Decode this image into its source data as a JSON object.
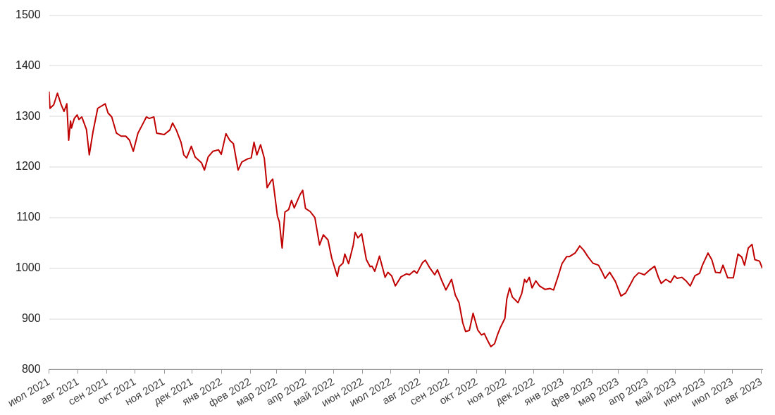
{
  "chart_data": {
    "type": "line",
    "xlim": [
      "2021-07-01",
      "2023-08-02"
    ],
    "ylim": [
      800,
      1500
    ],
    "yticks": [
      800,
      900,
      1000,
      1100,
      1200,
      1300,
      1400,
      1500
    ],
    "xticks": [
      {
        "value": "2021-07-01",
        "label": "июл 2021"
      },
      {
        "value": "2021-08-01",
        "label": "авг 2021"
      },
      {
        "value": "2021-09-01",
        "label": "сен 2021"
      },
      {
        "value": "2021-10-01",
        "label": "окт 2021"
      },
      {
        "value": "2021-11-01",
        "label": "ноя 2021"
      },
      {
        "value": "2021-12-01",
        "label": "дек 2021"
      },
      {
        "value": "2022-01-01",
        "label": "янв 2022"
      },
      {
        "value": "2022-02-01",
        "label": "фев 2022"
      },
      {
        "value": "2022-03-01",
        "label": "мар 2022"
      },
      {
        "value": "2022-04-01",
        "label": "апр 2022"
      },
      {
        "value": "2022-05-01",
        "label": "май 2022"
      },
      {
        "value": "2022-06-01",
        "label": "июн 2022"
      },
      {
        "value": "2022-07-01",
        "label": "июл 2022"
      },
      {
        "value": "2022-08-01",
        "label": "авг 2022"
      },
      {
        "value": "2022-09-01",
        "label": "сен 2022"
      },
      {
        "value": "2022-10-01",
        "label": "окт 2022"
      },
      {
        "value": "2022-11-01",
        "label": "ноя 2022"
      },
      {
        "value": "2022-12-01",
        "label": "дек 2022"
      },
      {
        "value": "2023-01-01",
        "label": "янв 2023"
      },
      {
        "value": "2023-02-01",
        "label": "фев 2023"
      },
      {
        "value": "2023-03-01",
        "label": "мар 2023"
      },
      {
        "value": "2023-04-01",
        "label": "апр 2023"
      },
      {
        "value": "2023-05-01",
        "label": "май 2023"
      },
      {
        "value": "2023-06-01",
        "label": "июн 2023"
      },
      {
        "value": "2023-07-01",
        "label": "июл 2023"
      },
      {
        "value": "2023-08-01",
        "label": "авг 2023"
      }
    ],
    "grid": "y",
    "legend": false,
    "marker": "none",
    "line_style": "solid",
    "x": [
      "2021-07-01",
      "2021-07-02",
      "2021-07-06",
      "2021-07-10",
      "2021-07-14",
      "2021-07-17",
      "2021-07-20",
      "2021-07-22",
      "2021-07-24",
      "2021-07-25",
      "2021-07-28",
      "2021-07-31",
      "2021-08-02",
      "2021-08-05",
      "2021-08-10",
      "2021-08-13",
      "2021-08-17",
      "2021-08-22",
      "2021-08-30",
      "2021-09-02",
      "2021-09-06",
      "2021-09-11",
      "2021-09-16",
      "2021-09-21",
      "2021-09-25",
      "2021-09-29",
      "2021-10-04",
      "2021-10-08",
      "2021-10-13",
      "2021-10-16",
      "2021-10-21",
      "2021-10-24",
      "2021-11-01",
      "2021-11-07",
      "2021-11-10",
      "2021-11-14",
      "2021-11-19",
      "2021-11-22",
      "2021-11-25",
      "2021-11-30",
      "2021-12-04",
      "2021-12-11",
      "2021-12-14",
      "2021-12-18",
      "2021-12-23",
      "2021-12-29",
      "2022-01-01",
      "2022-01-06",
      "2022-01-10",
      "2022-01-14",
      "2022-01-19",
      "2022-01-23",
      "2022-01-29",
      "2022-02-02",
      "2022-02-05",
      "2022-02-08",
      "2022-02-12",
      "2022-02-16",
      "2022-02-19",
      "2022-02-23",
      "2022-02-25",
      "2022-03-02",
      "2022-03-04",
      "2022-03-07",
      "2022-03-10",
      "2022-03-14",
      "2022-03-17",
      "2022-03-20",
      "2022-03-26",
      "2022-03-29",
      "2022-04-01",
      "2022-04-06",
      "2022-04-11",
      "2022-04-16",
      "2022-04-20",
      "2022-04-25",
      "2022-04-29",
      "2022-05-05",
      "2022-05-07",
      "2022-05-11",
      "2022-05-13",
      "2022-05-17",
      "2022-05-22",
      "2022-05-24",
      "2022-05-27",
      "2022-05-31",
      "2022-06-05",
      "2022-06-09",
      "2022-06-11",
      "2022-06-14",
      "2022-06-19",
      "2022-06-25",
      "2022-06-28",
      "2022-07-02",
      "2022-07-06",
      "2022-07-12",
      "2022-07-18",
      "2022-07-21",
      "2022-07-26",
      "2022-07-29",
      "2022-08-04",
      "2022-08-07",
      "2022-08-12",
      "2022-08-17",
      "2022-08-20",
      "2022-08-24",
      "2022-08-29",
      "2022-09-04",
      "2022-09-08",
      "2022-09-12",
      "2022-09-16",
      "2022-09-19",
      "2022-09-23",
      "2022-09-27",
      "2022-10-02",
      "2022-10-06",
      "2022-10-09",
      "2022-10-12",
      "2022-10-16",
      "2022-10-20",
      "2022-10-23",
      "2022-10-26",
      "2022-10-31",
      "2022-11-02",
      "2022-11-05",
      "2022-11-08",
      "2022-11-14",
      "2022-11-18",
      "2022-11-21",
      "2022-11-23",
      "2022-11-26",
      "2022-11-29",
      "2022-12-03",
      "2022-12-07",
      "2022-12-13",
      "2022-12-18",
      "2022-12-22",
      "2022-12-27",
      "2022-12-31",
      "2023-01-05",
      "2023-01-08",
      "2023-01-14",
      "2023-01-19",
      "2023-01-23",
      "2023-01-28",
      "2023-02-02",
      "2023-02-08",
      "2023-02-12",
      "2023-02-15",
      "2023-02-20",
      "2023-02-26",
      "2023-03-04",
      "2023-03-09",
      "2023-03-14",
      "2023-03-18",
      "2023-03-23",
      "2023-03-29",
      "2023-04-04",
      "2023-04-09",
      "2023-04-13",
      "2023-04-16",
      "2023-04-21",
      "2023-04-26",
      "2023-04-30",
      "2023-05-03",
      "2023-05-08",
      "2023-05-13",
      "2023-05-17",
      "2023-05-22",
      "2023-05-27",
      "2023-05-30",
      "2023-06-05",
      "2023-06-09",
      "2023-06-13",
      "2023-06-18",
      "2023-06-21",
      "2023-06-26",
      "2023-07-02",
      "2023-07-07",
      "2023-07-11",
      "2023-07-14",
      "2023-07-18",
      "2023-07-22",
      "2023-07-25",
      "2023-07-30",
      "2023-08-02"
    ],
    "series": [
      {
        "color": "#c00000",
        "values": [
          1349,
          1316,
          1323,
          1346,
          1323,
          1310,
          1325,
          1253,
          1291,
          1277,
          1296,
          1303,
          1294,
          1299,
          1274,
          1224,
          1270,
          1316,
          1325,
          1307,
          1299,
          1267,
          1261,
          1261,
          1253,
          1231,
          1267,
          1281,
          1299,
          1296,
          1299,
          1267,
          1264,
          1273,
          1287,
          1273,
          1249,
          1224,
          1218,
          1241,
          1220,
          1208,
          1194,
          1220,
          1231,
          1234,
          1225,
          1266,
          1253,
          1246,
          1194,
          1210,
          1216,
          1218,
          1249,
          1224,
          1244,
          1217,
          1159,
          1172,
          1176,
          1103,
          1092,
          1040,
          1111,
          1116,
          1134,
          1119,
          1145,
          1154,
          1118,
          1112,
          1100,
          1046,
          1066,
          1056,
          1020,
          984,
          1003,
          1010,
          1028,
          1009,
          1046,
          1071,
          1060,
          1068,
          1017,
          1003,
          1004,
          994,
          1024,
          982,
          992,
          985,
          965,
          983,
          989,
          987,
          995,
          990,
          1011,
          1016,
          1000,
          987,
          997,
          978,
          957,
          978,
          947,
          932,
          892,
          875,
          877,
          911,
          878,
          868,
          871,
          859,
          845,
          851,
          868,
          882,
          901,
          939,
          961,
          943,
          932,
          950,
          978,
          972,
          982,
          961,
          975,
          965,
          958,
          960,
          957,
          985,
          1009,
          1023,
          1023,
          1030,
          1044,
          1036,
          1022,
          1010,
          1006,
          992,
          980,
          992,
          974,
          945,
          951,
          968,
          982,
          991,
          987,
          997,
          1004,
          982,
          970,
          978,
          972,
          985,
          980,
          982,
          974,
          965,
          985,
          990,
          1006,
          1030,
          1017,
          992,
          991,
          1006,
          981,
          981,
          1028,
          1022,
          1006,
          1040,
          1047,
          1017,
          1014,
          1000
        ]
      }
    ]
  }
}
